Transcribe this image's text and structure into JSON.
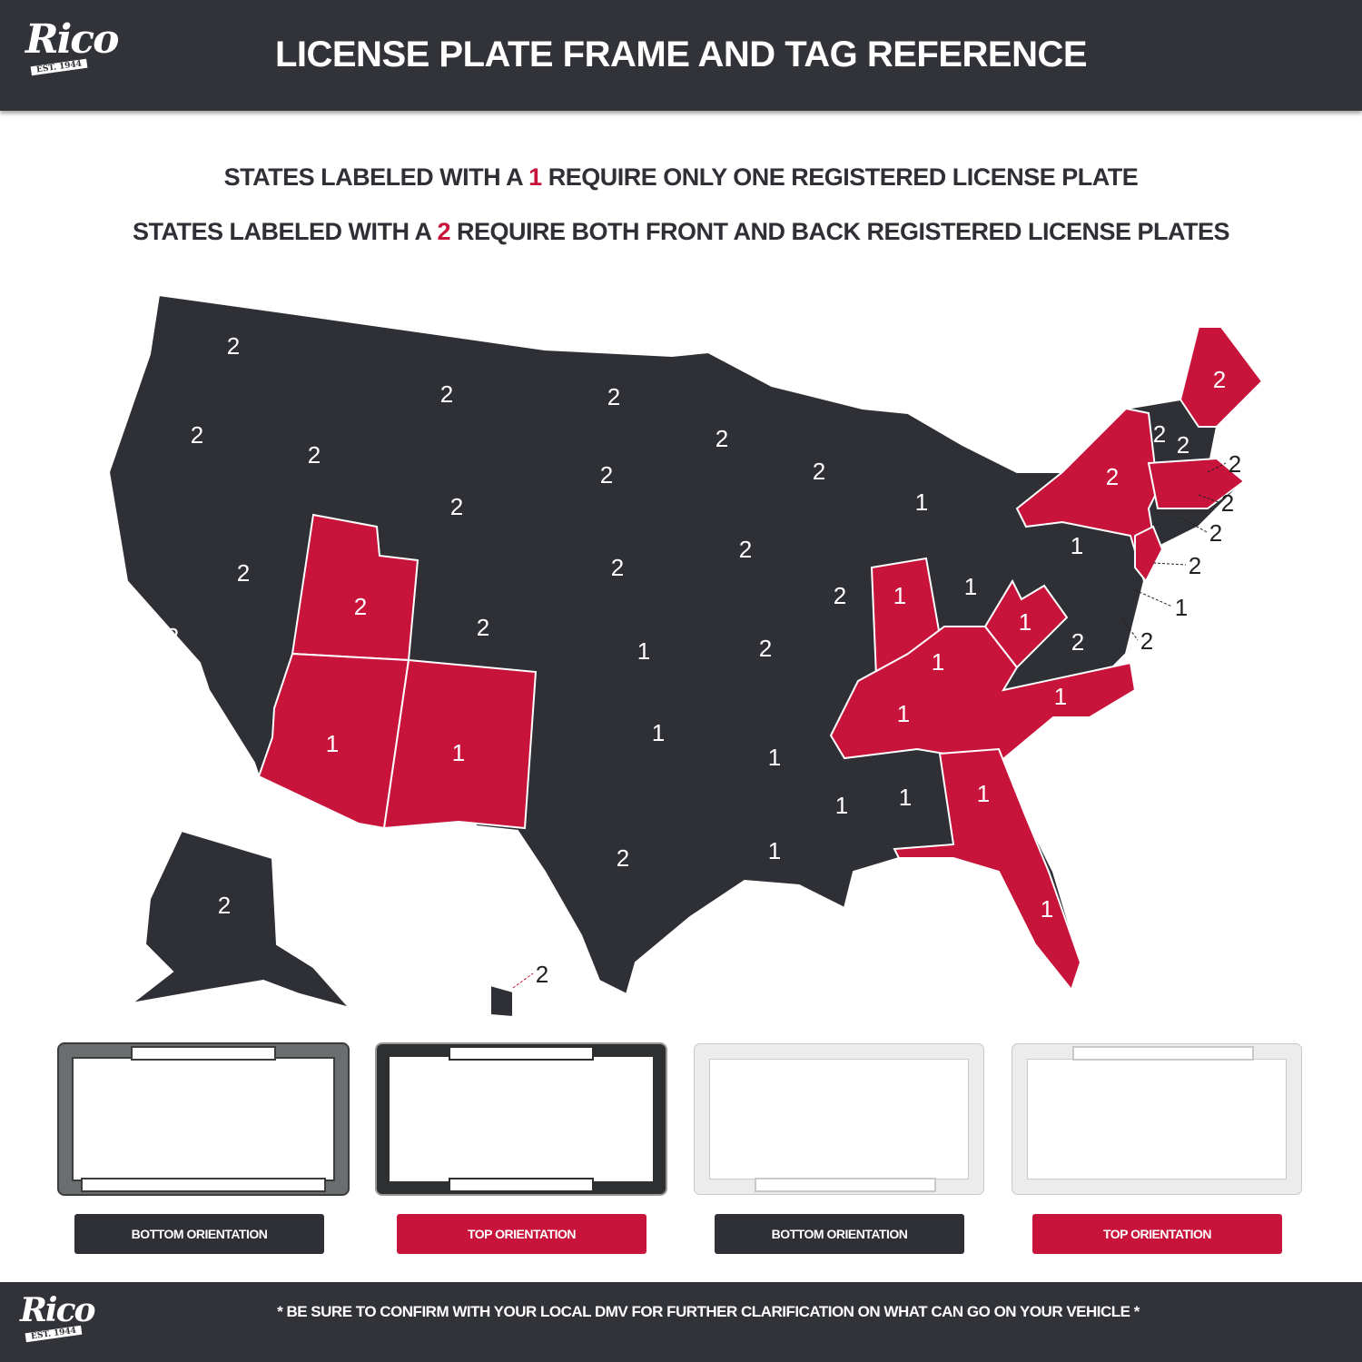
{
  "header": {
    "logo_text": "Rico",
    "logo_tagline": "EST. 1944",
    "title": "LICENSE PLATE FRAME AND TAG REFERENCE"
  },
  "legend": {
    "line1": {
      "prefix": "STATES LABELED WITH A ",
      "number": "1",
      "suffix": " REQUIRE ONLY ONE REGISTERED LICENSE PLATE"
    },
    "line2": {
      "prefix": "STATES LABELED WITH A ",
      "number": "2",
      "suffix": " REQUIRE BOTH FRONT AND BACK REGISTERED LICENSE PLATES"
    }
  },
  "colors": {
    "dark": "#2f3035",
    "accent_red": "#c8143b",
    "header_bg": "#313338"
  },
  "map": {
    "labels": [
      "2",
      "2",
      "2",
      "2",
      "2",
      "2",
      "2",
      "2",
      "1",
      "1",
      "2",
      "2",
      "2",
      "2",
      "1",
      "1",
      "2",
      "2",
      "2",
      "2",
      "1",
      "1",
      "2",
      "2",
      "1",
      "1",
      "1",
      "1",
      "1",
      "1",
      "1",
      "1",
      "1",
      "1",
      "1",
      "2",
      "1",
      "1",
      "2",
      "2",
      "2",
      "2",
      "2",
      "2",
      "2",
      "2",
      "1",
      "2",
      "2",
      "2"
    ]
  },
  "frames": [
    {
      "style": "dark-metal",
      "label": "BOTTOM ORIENTATION"
    },
    {
      "style": "chrome",
      "label": "TOP ORIENTATION"
    },
    {
      "style": "white",
      "label": "BOTTOM ORIENTATION"
    },
    {
      "style": "white",
      "label": "TOP ORIENTATION"
    }
  ],
  "footer": {
    "logo_text": "Rico",
    "logo_tagline": "EST. 1944",
    "disclaimer": "* BE SURE TO CONFIRM WITH YOUR LOCAL DMV FOR FURTHER CLARIFICATION ON WHAT CAN GO ON YOUR VEHICLE *"
  }
}
